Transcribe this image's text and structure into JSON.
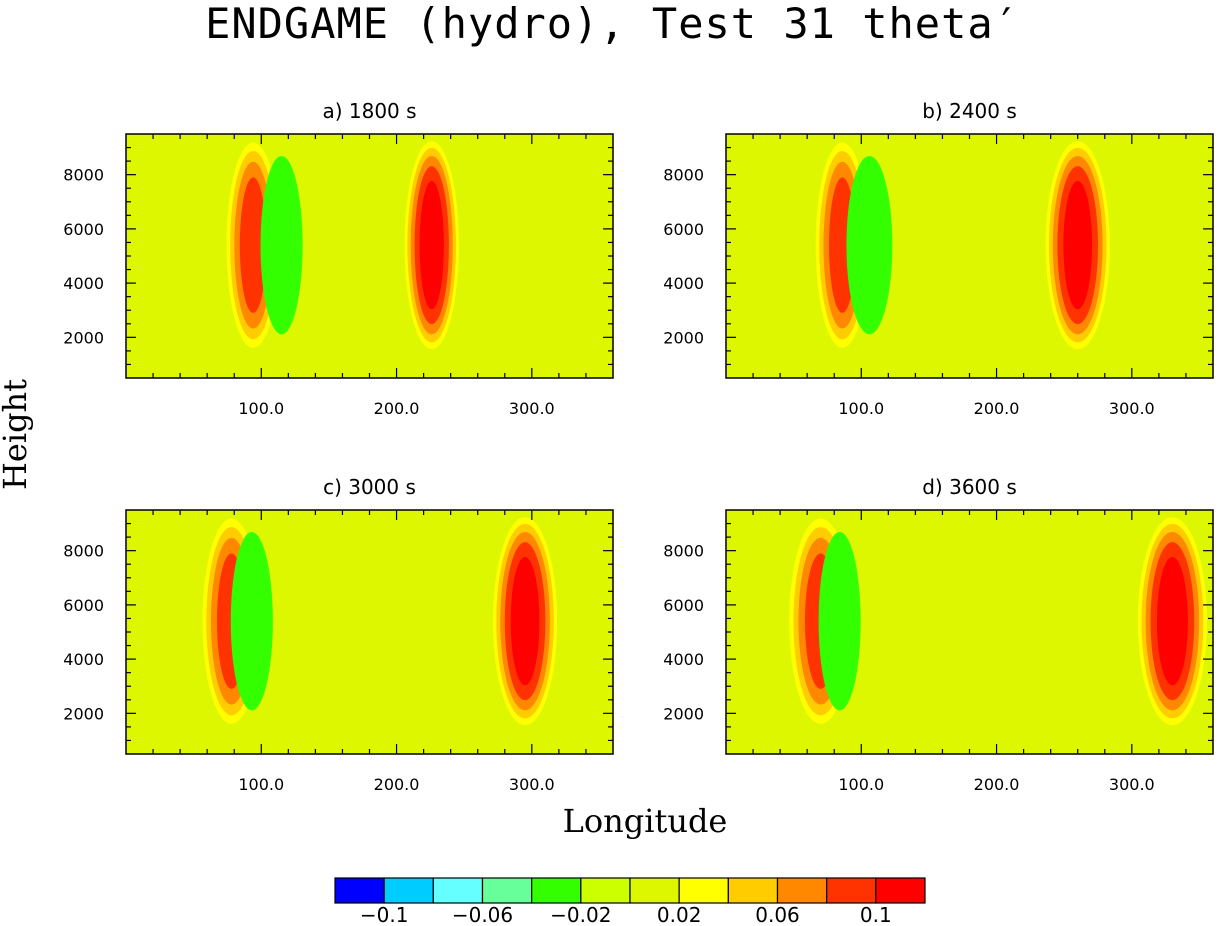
{
  "figure": {
    "title": "ENDGAME (hydro), Test 31 theta′",
    "ylabel": "Height",
    "xlabel": "Longitude"
  },
  "chart_data": [
    {
      "type": "heatmap",
      "title": "a) 1800 s",
      "xlim": [
        0,
        360
      ],
      "ylim": [
        500,
        9500
      ],
      "xticks": [
        100,
        200,
        300
      ],
      "xtick_labels": [
        "100.0",
        "200.0",
        "300.0"
      ],
      "yticks": [
        2000,
        4000,
        6000,
        8000
      ],
      "ytick_labels": [
        "2000",
        "4000",
        "6000",
        "8000"
      ],
      "features": [
        {
          "kind": "warm",
          "lon": 94,
          "z": 5400,
          "peak": 0.1,
          "half_width_lon": 22
        },
        {
          "kind": "cool",
          "lon": 115,
          "z": 5400,
          "peak": -0.04,
          "half_width_lon": 22
        },
        {
          "kind": "warm",
          "lon": 226,
          "z": 5400,
          "peak": 0.12,
          "half_width_lon": 22
        }
      ]
    },
    {
      "type": "heatmap",
      "title": "b) 2400 s",
      "xlim": [
        0,
        360
      ],
      "ylim": [
        500,
        9500
      ],
      "xticks": [
        100,
        200,
        300
      ],
      "xtick_labels": [
        "100.0",
        "200.0",
        "300.0"
      ],
      "yticks": [
        2000,
        4000,
        6000,
        8000
      ],
      "ytick_labels": [
        "2000",
        "4000",
        "6000",
        "8000"
      ],
      "features": [
        {
          "kind": "warm",
          "lon": 86,
          "z": 5400,
          "peak": 0.1,
          "half_width_lon": 22
        },
        {
          "kind": "cool",
          "lon": 106,
          "z": 5400,
          "peak": -0.04,
          "half_width_lon": 24
        },
        {
          "kind": "warm",
          "lon": 260,
          "z": 5400,
          "peak": 0.12,
          "half_width_lon": 26
        }
      ]
    },
    {
      "type": "heatmap",
      "title": "c) 3000 s",
      "xlim": [
        0,
        360
      ],
      "ylim": [
        500,
        9500
      ],
      "xticks": [
        100,
        200,
        300
      ],
      "xtick_labels": [
        "100.0",
        "200.0",
        "300.0"
      ],
      "yticks": [
        2000,
        4000,
        6000,
        8000
      ],
      "ytick_labels": [
        "2000",
        "4000",
        "6000",
        "8000"
      ],
      "features": [
        {
          "kind": "warm",
          "lon": 78,
          "z": 5400,
          "peak": 0.1,
          "half_width_lon": 24
        },
        {
          "kind": "cool",
          "lon": 93,
          "z": 5400,
          "peak": -0.04,
          "half_width_lon": 22
        },
        {
          "kind": "warm",
          "lon": 295,
          "z": 5400,
          "peak": 0.12,
          "half_width_lon": 26
        }
      ]
    },
    {
      "type": "heatmap",
      "title": "d) 3600 s",
      "xlim": [
        0,
        360
      ],
      "ylim": [
        500,
        9500
      ],
      "xticks": [
        100,
        200,
        300
      ],
      "xtick_labels": [
        "100.0",
        "200.0",
        "300.0"
      ],
      "yticks": [
        2000,
        4000,
        6000,
        8000
      ],
      "ytick_labels": [
        "2000",
        "4000",
        "6000",
        "8000"
      ],
      "features": [
        {
          "kind": "warm",
          "lon": 70,
          "z": 5400,
          "peak": 0.1,
          "half_width_lon": 26
        },
        {
          "kind": "cool",
          "lon": 84,
          "z": 5400,
          "peak": -0.04,
          "half_width_lon": 22
        },
        {
          "kind": "warm",
          "lon": 330,
          "z": 5400,
          "peak": 0.12,
          "half_width_lon": 28
        },
        {
          "kind": "warm",
          "lon": 2,
          "z": 5400,
          "peak": 0.02,
          "half_width_lon": 10
        }
      ]
    }
  ],
  "colorbar": {
    "boundaries": [
      -0.12,
      -0.1,
      -0.08,
      -0.06,
      -0.04,
      -0.02,
      0,
      0.02,
      0.04,
      0.06,
      0.08,
      0.1,
      0.12
    ],
    "colors": [
      "#0000ff",
      "#00ccff",
      "#66ffff",
      "#66ff99",
      "#33ff00",
      "#ccff00",
      "#ddf700",
      "#ffff00",
      "#ffcc00",
      "#ff8800",
      "#ff3300",
      "#ff0000"
    ],
    "labels": [
      "−0.1",
      "−0.06",
      "−0.02",
      "0.02",
      "0.06",
      "0.1"
    ],
    "label_values": [
      -0.1,
      -0.06,
      -0.02,
      0.02,
      0.06,
      0.1
    ]
  }
}
